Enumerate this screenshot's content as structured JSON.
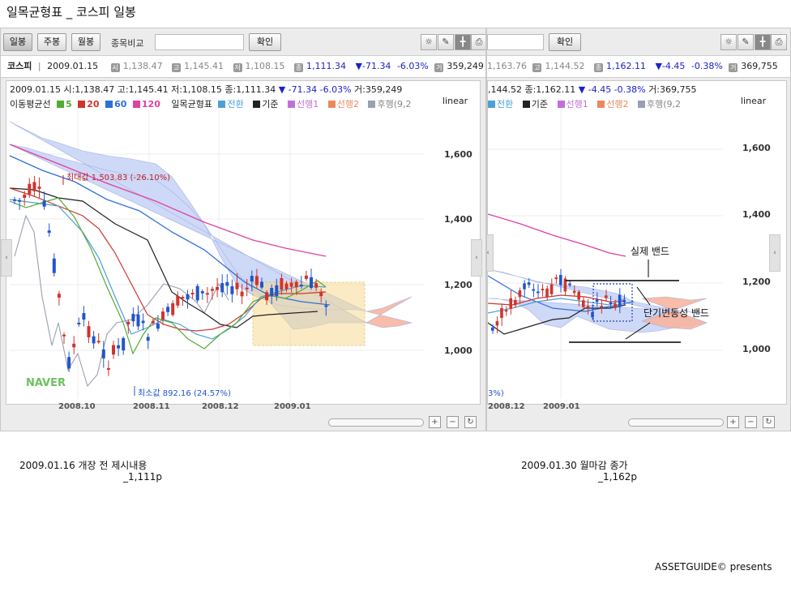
{
  "doc_title": "일목균형표 _ 코스피 일봉",
  "left_panel": {
    "toolbar": {
      "daily": "일봉",
      "weekly": "주봉",
      "monthly": "월봉",
      "compare_label": "종목비교",
      "confirm": "확인"
    },
    "quote": {
      "name": "코스피",
      "date": "2009.01.15",
      "open": "1,138.47",
      "high": "1,145.41",
      "low": "1,108.15",
      "close": "1,111.34",
      "change": "▼-71.34",
      "pct": "-6.03%",
      "volume": "359,249"
    },
    "info_line": "2009.01.15 시:1,138.47 고:1,145.41 저:1,108.15 종:1,111.34",
    "info_change": "▼ -71.34 -6.03%",
    "info_volume": "거:359,249",
    "scale": "linear",
    "watermark": "NAVER"
  },
  "right_panel": {
    "toolbar": {
      "confirm": "확인"
    },
    "quote": {
      "open": "1,163.76",
      "high": "1,144.52",
      "close": "1,162.11",
      "change": "▼-4.45",
      "pct": "-0.38%",
      "volume": "369,755"
    },
    "info_line": ",144.52 종:1,162.11",
    "info_change": "▼ -4.45 -0.38%",
    "info_volume": "거:369,755",
    "scale": "linear"
  },
  "legend": {
    "ma_label": "이동평균선",
    "ma5": "5",
    "ma20": "20",
    "ma60": "60",
    "ma120": "120",
    "ichimoku_label": "일목균형표",
    "conversion": "전환",
    "base": "기준",
    "lead1": "선행1",
    "lead2": "선행2",
    "lagging": "후행(9,2"
  },
  "colors": {
    "ma5": "#55aa33",
    "ma20": "#d0342c",
    "ma60": "#2f6fd6",
    "ma120": "#e040a0",
    "conversion": "#4aa0d8",
    "base": "#222222",
    "lead1": "#c070d8",
    "lead2": "#e88a60",
    "lagging": "#9aa0b0",
    "cloud_blue": "#c9d4f7",
    "cloud_red": "#f8b5a0",
    "up": "#d0342c",
    "down": "#2255cc"
  },
  "chart_data": [
    {
      "type": "candlestick",
      "x_ticks": [
        "2008.10",
        "2008.11",
        "2008.12",
        "2009.01"
      ],
      "y_ticks": [
        "1,600",
        "1,400",
        "1,200",
        "1,000"
      ],
      "ylim": [
        880,
        1650
      ],
      "annotations": [
        {
          "text": "최대값 1,503.83 (-26.10%)",
          "value": 1503.83
        },
        {
          "text": "최소값 892.16 (24.57%)",
          "value": 892.16
        }
      ]
    },
    {
      "type": "candlestick",
      "x_ticks": [
        "2008.12",
        "2009.01"
      ],
      "x_tick_fragment": "3%)",
      "y_ticks": [
        "1,600",
        "1,400",
        "1,200",
        "1,000"
      ],
      "ylim": [
        880,
        1650
      ],
      "annotations": [
        {
          "text": "실제 밴드"
        },
        {
          "text": "단기변동성 밴드"
        }
      ]
    }
  ],
  "captions": {
    "left_main": "2009.01.16 개장 전 제시내용",
    "left_sub": "_1,111p",
    "right_main": "2009.01.30 월마감 종가",
    "right_sub": "_1,162p"
  },
  "footer": "ASSETGUIDE© presents"
}
